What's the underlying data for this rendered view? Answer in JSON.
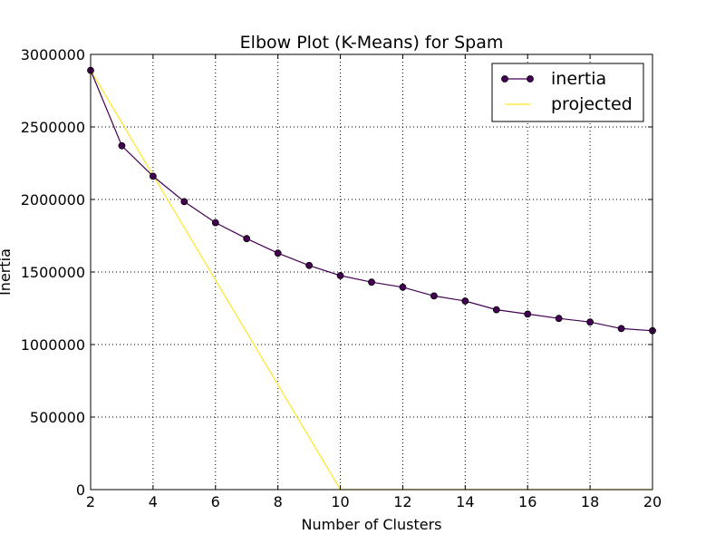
{
  "chart_data": {
    "type": "line",
    "title": "Elbow Plot (K-Means) for Spam",
    "xlabel": "Number of Clusters",
    "ylabel": "Inertia",
    "xlim": [
      2,
      20
    ],
    "ylim": [
      0,
      3000000
    ],
    "x_ticks": [
      2,
      4,
      6,
      8,
      10,
      12,
      14,
      16,
      18,
      20
    ],
    "y_ticks": [
      0,
      500000,
      1000000,
      1500000,
      2000000,
      2500000,
      3000000
    ],
    "grid": true,
    "legend_position": "top-right",
    "series": [
      {
        "name": "inertia",
        "color": "#440154",
        "marker": "circle",
        "x": [
          2,
          3,
          4,
          5,
          6,
          7,
          8,
          9,
          10,
          11,
          12,
          13,
          14,
          15,
          16,
          17,
          18,
          19,
          20
        ],
        "y": [
          2890000,
          2370000,
          2160000,
          1985000,
          1840000,
          1730000,
          1630000,
          1545000,
          1475000,
          1430000,
          1395000,
          1335000,
          1300000,
          1240000,
          1210000,
          1180000,
          1155000,
          1110000,
          1095000
        ]
      },
      {
        "name": "projected",
        "color": "#fde725",
        "marker": "none",
        "x": [
          2,
          10,
          20
        ],
        "y": [
          2890000,
          0,
          0
        ]
      }
    ]
  }
}
